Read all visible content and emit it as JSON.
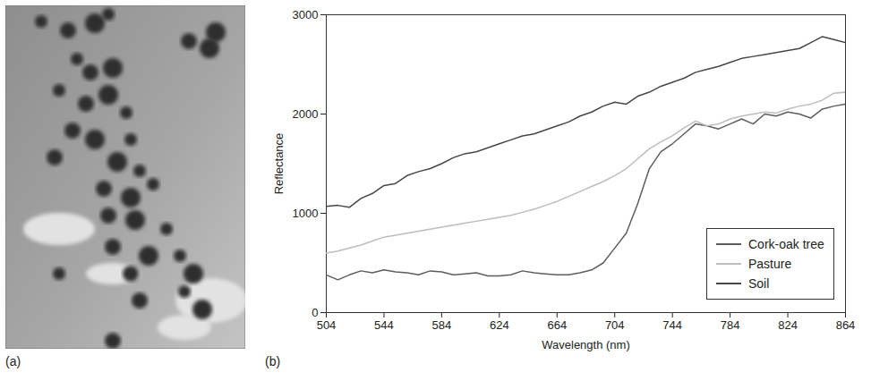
{
  "image_panel": {
    "label": "(a)"
  },
  "chart_data": {
    "type": "line",
    "panel_label": "(b)",
    "x_label": "Wavelength (nm)",
    "y_label": "Reflectance",
    "x": [
      504,
      512,
      520,
      528,
      536,
      544,
      552,
      560,
      568,
      576,
      584,
      592,
      600,
      608,
      616,
      624,
      632,
      640,
      648,
      656,
      664,
      672,
      680,
      688,
      696,
      704,
      712,
      720,
      728,
      736,
      744,
      752,
      760,
      768,
      776,
      784,
      792,
      800,
      808,
      816,
      824,
      832,
      840,
      848,
      856,
      864
    ],
    "series": [
      {
        "name": "Cork-oak tree",
        "color": "#5e5e5e",
        "values": [
          380,
          330,
          380,
          420,
          400,
          430,
          410,
          400,
          380,
          420,
          410,
          380,
          390,
          400,
          370,
          370,
          380,
          420,
          400,
          390,
          380,
          380,
          400,
          430,
          500,
          650,
          800,
          1100,
          1450,
          1620,
          1700,
          1800,
          1900,
          1880,
          1850,
          1900,
          1950,
          1900,
          2000,
          1980,
          2020,
          2000,
          1960,
          2050,
          2080,
          2100
        ]
      },
      {
        "name": "Pasture",
        "color": "#bdbdbd",
        "values": [
          600,
          620,
          650,
          680,
          720,
          760,
          780,
          800,
          820,
          840,
          860,
          880,
          900,
          920,
          940,
          960,
          980,
          1010,
          1040,
          1080,
          1120,
          1170,
          1220,
          1270,
          1320,
          1380,
          1450,
          1550,
          1650,
          1720,
          1780,
          1860,
          1930,
          1880,
          1900,
          1950,
          1980,
          2000,
          2020,
          2010,
          2050,
          2080,
          2100,
          2140,
          2210,
          2220
        ]
      },
      {
        "name": "Soil",
        "color": "#474747",
        "values": [
          1070,
          1080,
          1060,
          1150,
          1200,
          1280,
          1300,
          1380,
          1420,
          1450,
          1500,
          1560,
          1600,
          1620,
          1660,
          1700,
          1740,
          1780,
          1800,
          1840,
          1880,
          1920,
          1980,
          2020,
          2080,
          2120,
          2100,
          2180,
          2220,
          2280,
          2320,
          2360,
          2420,
          2450,
          2480,
          2520,
          2560,
          2580,
          2600,
          2620,
          2640,
          2660,
          2720,
          2780,
          2750,
          2720
        ]
      }
    ],
    "xlim": [
      504,
      864
    ],
    "xticks": [
      504,
      544,
      584,
      624,
      664,
      704,
      744,
      784,
      824,
      864
    ],
    "ylim": [
      0,
      3000
    ],
    "yticks": [
      0,
      1000,
      2000,
      3000
    ],
    "grid": false,
    "legend": "lower right"
  }
}
